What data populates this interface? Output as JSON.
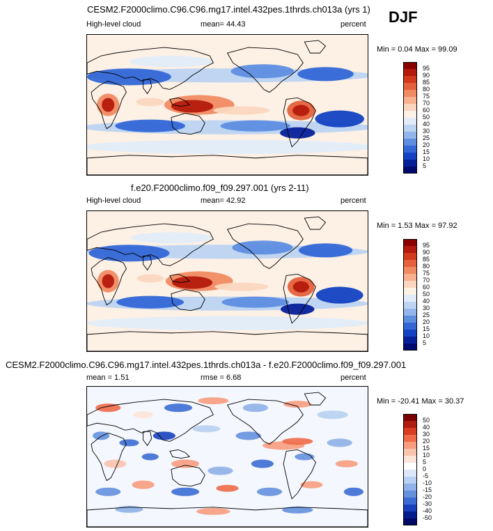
{
  "season": "DJF",
  "panels": [
    {
      "id": "top",
      "title": "CESM2.F2000climo.C96.C96.mg17.intel.432pes.1thrds.ch013a (yrs 1)",
      "left_text": "High-level cloud",
      "mid_text": "mean=  44.43",
      "right_text": "percent",
      "minmax": "Min =  0.04 Max = 99.09"
    },
    {
      "id": "middle",
      "title": "f.e20.F2000climo.f09_f09.297.001 (yrs 2-11)",
      "left_text": "High-level cloud",
      "mid_text": "mean=  42.92",
      "right_text": "percent",
      "minmax": "Min =  1.53 Max = 97.92"
    },
    {
      "id": "bottom",
      "title": "CESM2.F2000climo.C96.C96.mg17.intel.432pes.1thrds.ch013a - f.e20.F2000climo.f09_f09.297.001",
      "left_text": "mean =   1.51",
      "mid_text": "rmse =   6.68",
      "right_text": "percent",
      "minmax": "Min = -20.41 Max = 30.37"
    }
  ],
  "chart_data": [
    {
      "type": "heatmap",
      "title": "CESM2.F2000climo.C96.C96.mg17.intel.432pes.1thrds.ch013a (yrs 1)",
      "variable": "High-level cloud",
      "units": "percent",
      "mean": 44.43,
      "min": 0.04,
      "max": 99.09,
      "colorbar_levels": [
        "95",
        "90",
        "85",
        "80",
        "75",
        "70",
        "60",
        "50",
        "40",
        "30",
        "25",
        "20",
        "15",
        "10",
        "5"
      ]
    },
    {
      "type": "heatmap",
      "title": "f.e20.F2000climo.f09_f09.297.001 (yrs 2-11)",
      "variable": "High-level cloud",
      "units": "percent",
      "mean": 42.92,
      "min": 1.53,
      "max": 97.92,
      "colorbar_levels": [
        "95",
        "90",
        "85",
        "80",
        "75",
        "70",
        "60",
        "50",
        "40",
        "30",
        "25",
        "20",
        "15",
        "10",
        "5"
      ]
    },
    {
      "type": "heatmap",
      "title": "CESM2.F2000climo.C96.C96.mg17.intel.432pes.1thrds.ch013a - f.e20.F2000climo.f09_f09.297.001",
      "units": "percent",
      "mean": 1.51,
      "rmse": 6.68,
      "min": -20.41,
      "max": 30.37,
      "colorbar_levels": [
        "50",
        "40",
        "30",
        "20",
        "15",
        "10",
        "5",
        "0",
        "-5",
        "-10",
        "-15",
        "-20",
        "-30",
        "-40",
        "-50"
      ]
    }
  ],
  "colors": {
    "abs_scale": [
      "#8a0000",
      "#b41a0c",
      "#d23a1e",
      "#e5613d",
      "#f08a62",
      "#f8b08f",
      "#fbd6bf",
      "#fdf0e5",
      "#e2ecf9",
      "#bcd3f2",
      "#93b5eb",
      "#5e8ee0",
      "#3367d6",
      "#1342c2",
      "#07209a",
      "#000a6e"
    ],
    "diff_scale": [
      "#7a0000",
      "#b01c10",
      "#d83c22",
      "#ee6a48",
      "#f79c7e",
      "#fac3ae",
      "#fde4d8",
      "#ffffff",
      "#dce8f8",
      "#b8d0f1",
      "#8fb0e8",
      "#6590de",
      "#3c6cd4",
      "#1840bb",
      "#051c8c",
      "#000a66"
    ]
  }
}
